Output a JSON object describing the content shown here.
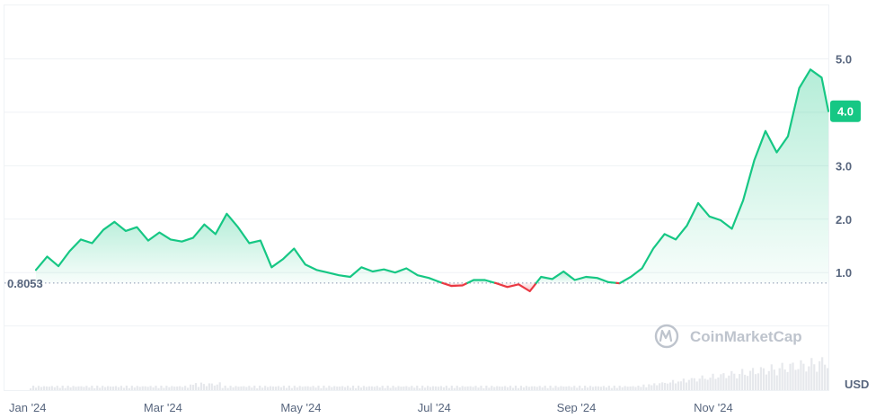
{
  "chart_data": {
    "type": "area",
    "x": [
      "2024-01-03",
      "2024-01-08",
      "2024-01-13",
      "2024-01-18",
      "2024-01-23",
      "2024-01-28",
      "2024-02-02",
      "2024-02-07",
      "2024-02-12",
      "2024-02-17",
      "2024-02-22",
      "2024-02-27",
      "2024-03-03",
      "2024-03-08",
      "2024-03-13",
      "2024-03-18",
      "2024-03-23",
      "2024-03-28",
      "2024-04-02",
      "2024-04-07",
      "2024-04-12",
      "2024-04-17",
      "2024-04-22",
      "2024-04-27",
      "2024-05-02",
      "2024-05-07",
      "2024-05-12",
      "2024-05-17",
      "2024-05-22",
      "2024-05-27",
      "2024-06-01",
      "2024-06-06",
      "2024-06-11",
      "2024-06-16",
      "2024-06-21",
      "2024-06-26",
      "2024-07-01",
      "2024-07-06",
      "2024-07-11",
      "2024-07-16",
      "2024-07-21",
      "2024-07-26",
      "2024-07-31",
      "2024-08-05",
      "2024-08-10",
      "2024-08-15",
      "2024-08-20",
      "2024-08-25",
      "2024-08-30",
      "2024-09-04",
      "2024-09-09",
      "2024-09-14",
      "2024-09-19",
      "2024-09-24",
      "2024-09-29",
      "2024-10-04",
      "2024-10-09",
      "2024-10-14",
      "2024-10-19",
      "2024-10-24",
      "2024-10-29",
      "2024-11-03",
      "2024-11-08",
      "2024-11-13",
      "2024-11-18",
      "2024-11-23",
      "2024-11-28",
      "2024-12-03",
      "2024-12-08",
      "2024-12-13",
      "2024-12-18",
      "2024-12-21"
    ],
    "series": [
      {
        "values": [
          1.05,
          1.3,
          1.12,
          1.4,
          1.62,
          1.55,
          1.8,
          1.95,
          1.78,
          1.85,
          1.6,
          1.75,
          1.62,
          1.58,
          1.65,
          1.9,
          1.72,
          2.1,
          1.85,
          1.55,
          1.6,
          1.1,
          1.25,
          1.45,
          1.15,
          1.05,
          1.0,
          0.95,
          0.92,
          1.1,
          1.02,
          1.06,
          1.0,
          1.08,
          0.95,
          0.9,
          0.82,
          0.75,
          0.76,
          0.86,
          0.86,
          0.8,
          0.73,
          0.78,
          0.65,
          0.92,
          0.88,
          1.02,
          0.86,
          0.92,
          0.9,
          0.82,
          0.8,
          0.92,
          1.08,
          1.45,
          1.72,
          1.62,
          1.88,
          2.3,
          2.05,
          1.98,
          1.82,
          2.35,
          3.1,
          3.65,
          3.25,
          3.55,
          4.45,
          4.8,
          4.65,
          4.02
        ]
      }
    ],
    "baseline": 0.8053,
    "baseline_label": "0.8053",
    "last_value_label": "4.0",
    "y_ticks": [
      "1.0",
      "2.0",
      "3.0",
      "4.0",
      "5.0"
    ],
    "x_ticks": [
      "Jan '24",
      "Mar '24",
      "May '24",
      "Jul '24",
      "Sep '24",
      "Nov '24"
    ],
    "unit_label": "USD",
    "ylim": [
      -1.2,
      6.0
    ],
    "grid": true,
    "colors": {
      "up": "#16c784",
      "down": "#ea3943",
      "grid": "#eff2f5",
      "axis_text": "#58667e"
    },
    "watermark": "CoinMarketCap"
  }
}
